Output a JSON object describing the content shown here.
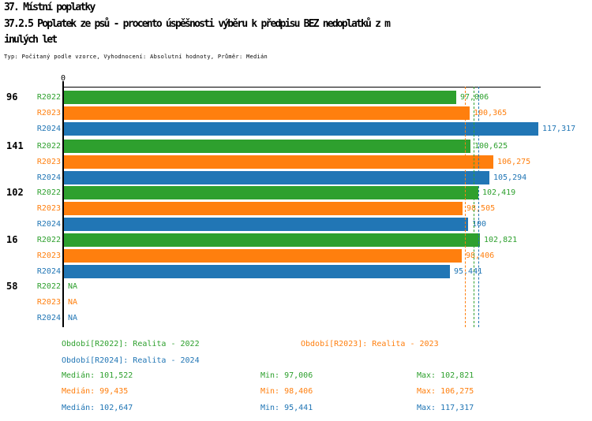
{
  "header": {
    "title": "37. Místní poplatky",
    "subtitle_lines": [
      "37.2.5 Poplatek ze psů - procento úspěšnosti výběru k předpisu BEZ nedoplatků z m",
      "inulých let"
    ],
    "meta": "Typ: Počítaný podle vzorce, Vyhodnocení: Absolutní hodnoty, Průměr: Medián"
  },
  "colors": {
    "R2022": "#2EA02E",
    "R2023": "#FF7F0E",
    "R2024": "#2176B5",
    "axis": "#000000",
    "background": "#FFFFFF"
  },
  "chart_data": {
    "type": "bar",
    "orientation": "horizontal",
    "title": "37.2.5 Poplatek ze psů - procento úspěšnosti výběru k předpisu BEZ nedoplatků z minulých let",
    "xlabel": "",
    "ylabel": "",
    "axis_origin_label": "0",
    "xlim": [
      0,
      118
    ],
    "grid": false,
    "categories": [
      "96",
      "141",
      "102",
      "16",
      "58"
    ],
    "series": [
      {
        "name": "R2022",
        "color": "#2EA02E",
        "values": [
          97.006,
          100.625,
          102.419,
          102.821,
          null
        ],
        "labels": [
          "97,006",
          "100,625",
          "102,419",
          "102,821",
          "NA"
        ],
        "median": 101.522,
        "median_display": "101,522"
      },
      {
        "name": "R2023",
        "color": "#FF7F0E",
        "values": [
          100.365,
          106.275,
          98.505,
          98.406,
          null
        ],
        "labels": [
          "100,365",
          "106,275",
          "98,505",
          "98,406",
          "NA"
        ],
        "median": 99.435,
        "median_display": "99,435"
      },
      {
        "name": "R2024",
        "color": "#2176B5",
        "values": [
          117.317,
          105.294,
          100,
          95.441,
          null
        ],
        "labels": [
          "117,317",
          "105,294",
          "100",
          "95,441",
          "NA"
        ],
        "median": 102.647,
        "median_display": "102,647"
      }
    ]
  },
  "legend": [
    {
      "series": "R2022",
      "label": "Období[R2022]: Realita - 2022"
    },
    {
      "series": "R2023",
      "label": "Období[R2023]: Realita - 2023"
    },
    {
      "series": "R2024",
      "label": "Období[R2024]: Realita - 2024"
    }
  ],
  "stats": [
    {
      "series": "R2022",
      "median": "Medián: 101,522",
      "min": "Min: 97,006",
      "max": "Max: 102,821"
    },
    {
      "series": "R2023",
      "median": "Medián: 99,435",
      "min": "Min: 98,406",
      "max": "Max: 106,275"
    },
    {
      "series": "R2024",
      "median": "Medián: 102,647",
      "min": "Min: 95,441",
      "max": "Max: 117,317"
    }
  ]
}
